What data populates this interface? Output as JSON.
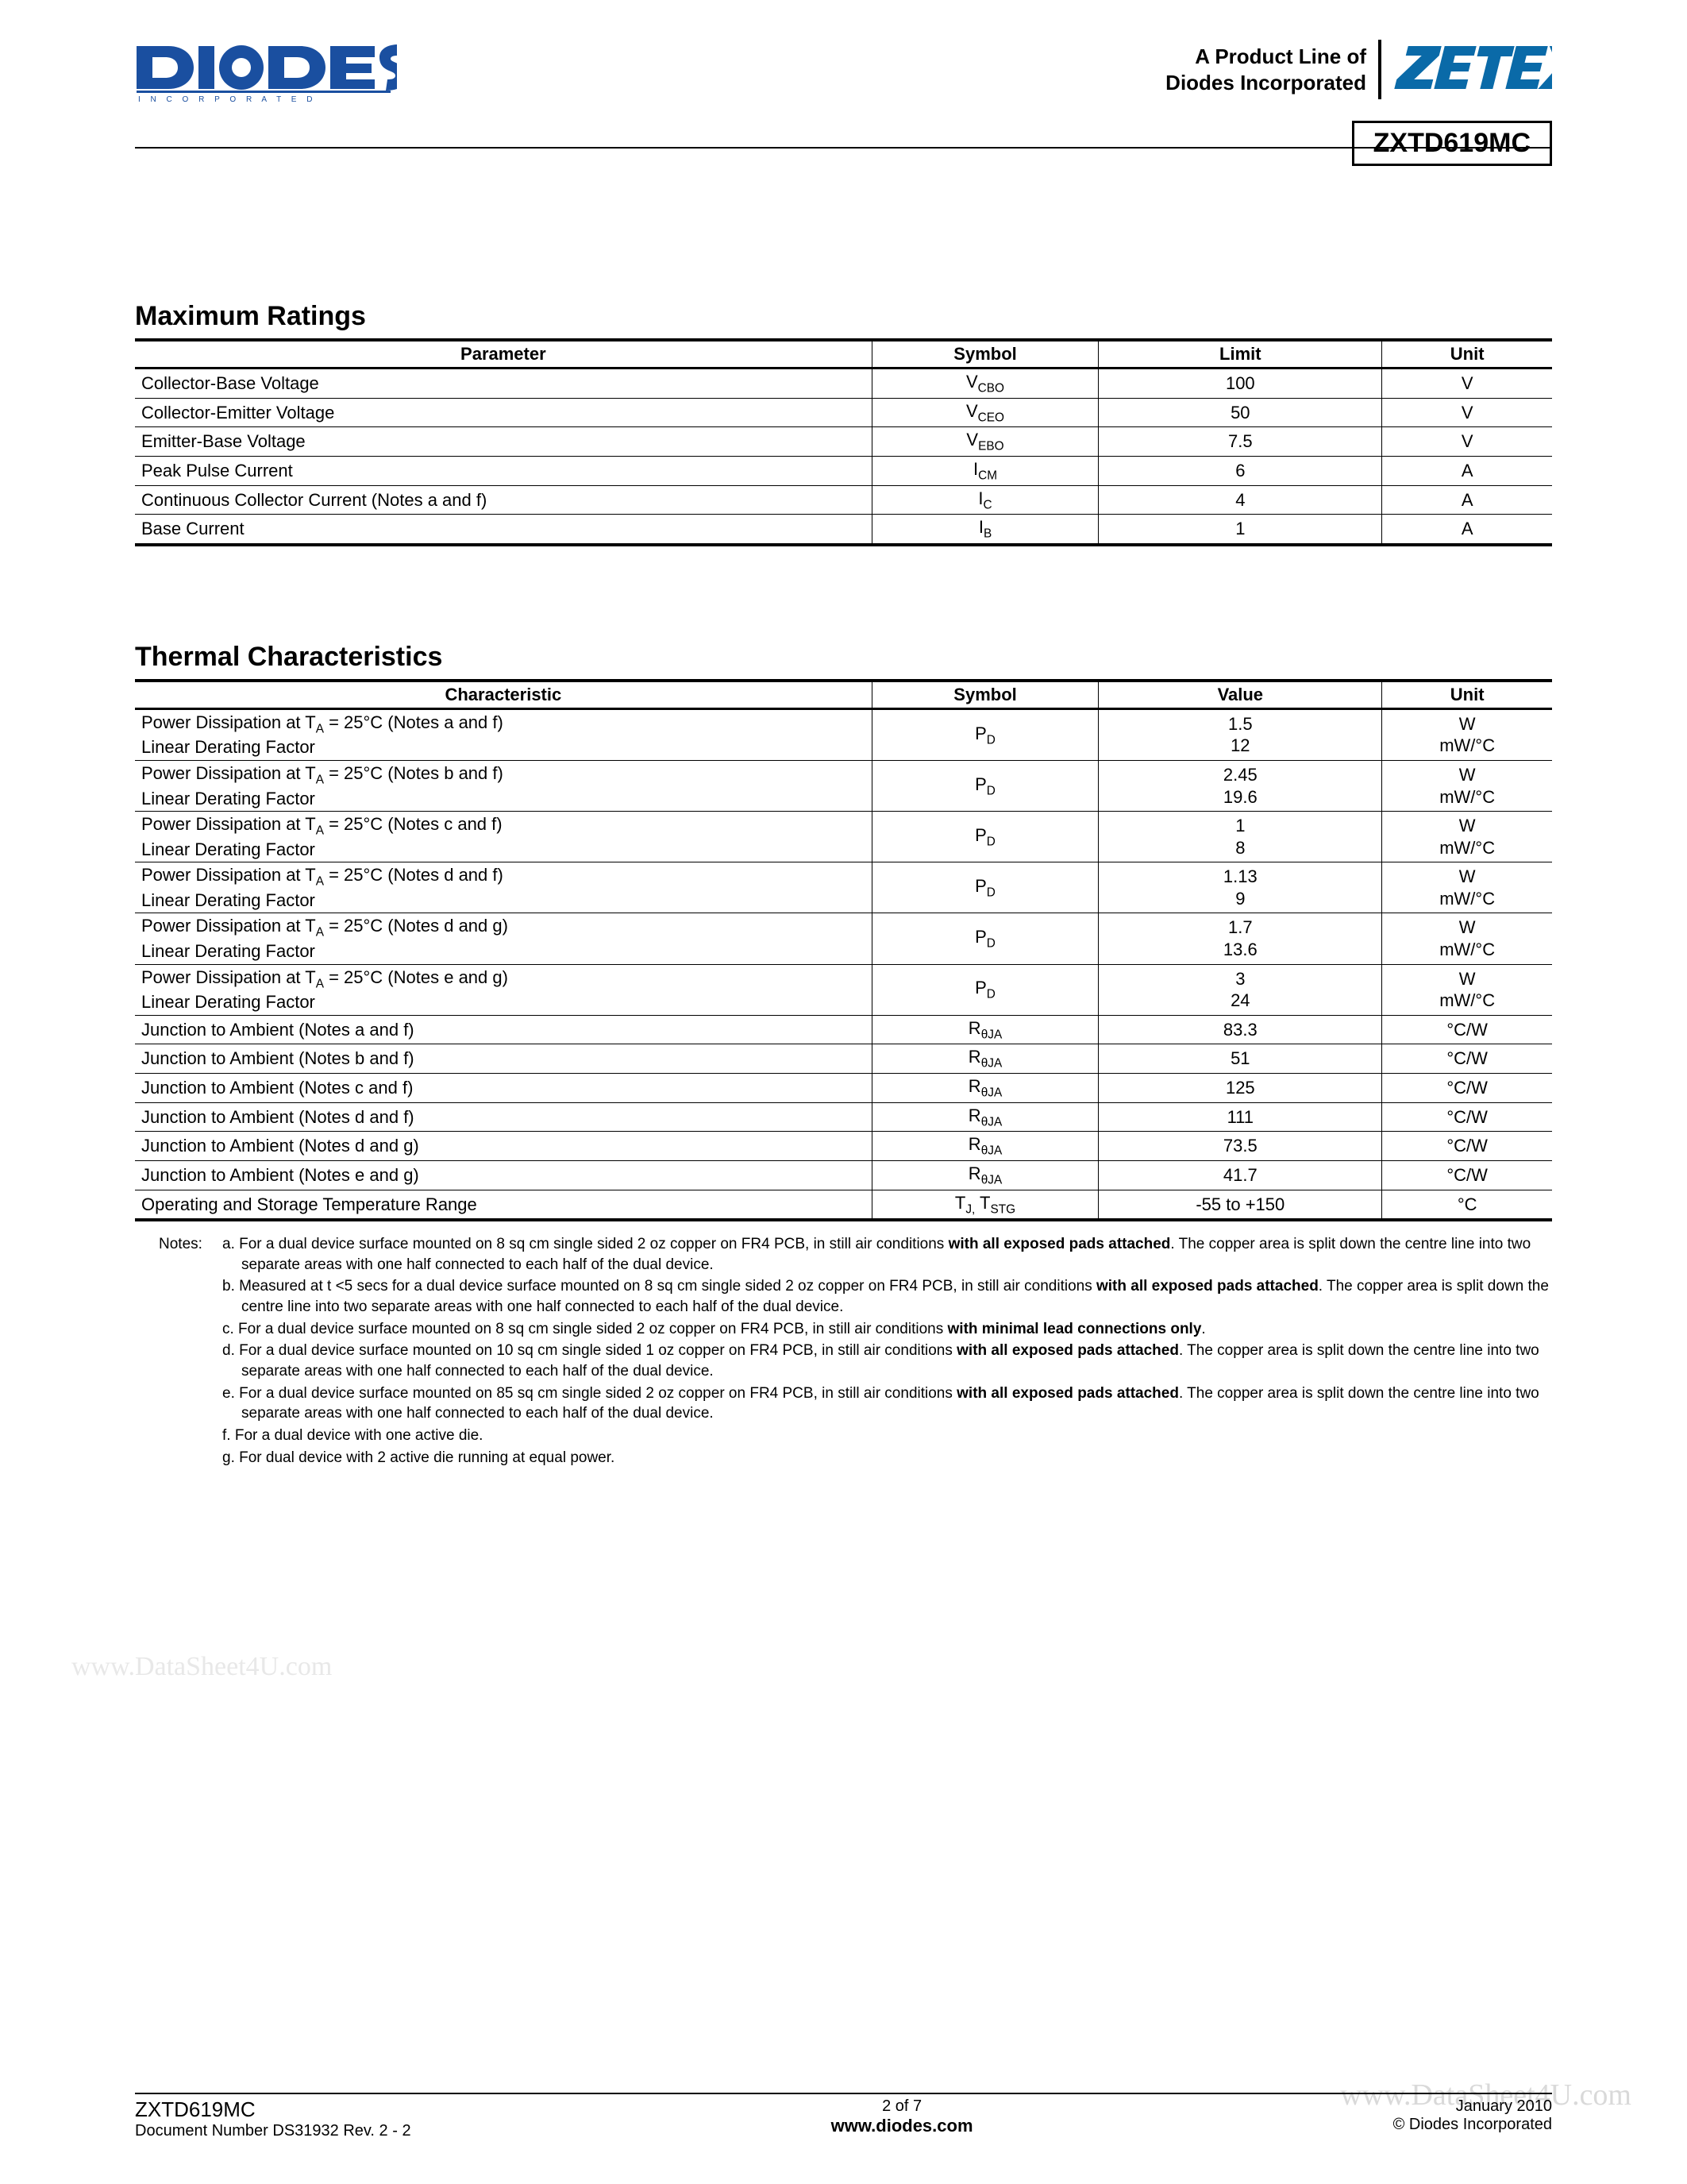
{
  "header": {
    "diodes_brand": "DIODES",
    "diodes_tag": "I N C O R P O R A T E D",
    "product_line_1": "A Product Line of",
    "product_line_2": "Diodes Incorporated",
    "zetex": "ZETEX",
    "part_number": "ZXTD619MC"
  },
  "colors": {
    "diodes_blue": "#1a4fa0",
    "zetex_blue": "#0a6aa8",
    "text": "#000000",
    "watermark": "#e8e8e8"
  },
  "max_ratings": {
    "title": "Maximum Ratings",
    "headers": [
      "Parameter",
      "Symbol",
      "Limit",
      "Unit"
    ],
    "rows": [
      {
        "param": "Collector-Base Voltage",
        "sym": "V",
        "sub": "CBO",
        "limit": "100",
        "unit": "V"
      },
      {
        "param": "Collector-Emitter Voltage",
        "sym": "V",
        "sub": "CEO",
        "limit": "50",
        "unit": "V"
      },
      {
        "param": "Emitter-Base Voltage",
        "sym": "V",
        "sub": "EBO",
        "limit": "7.5",
        "unit": "V"
      },
      {
        "param": "Peak Pulse Current",
        "sym": "I",
        "sub": "CM",
        "limit": "6",
        "unit": "A"
      },
      {
        "param": "Continuous Collector Current (Notes a and f)",
        "sym": "I",
        "sub": "C",
        "limit": "4",
        "unit": "A"
      },
      {
        "param": "Base Current",
        "sym": "I",
        "sub": "B",
        "limit": "1",
        "unit": "A"
      }
    ]
  },
  "thermal": {
    "title": "Thermal Characteristics",
    "headers": [
      "Characteristic",
      "Symbol",
      "Value",
      "Unit"
    ],
    "pd_rows": [
      {
        "note": "(Notes a and f)",
        "v1": "1.5",
        "v2": "12"
      },
      {
        "note": "(Notes b and f)",
        "v1": "2.45",
        "v2": "19.6"
      },
      {
        "note": "(Notes c and f)",
        "v1": "1",
        "v2": "8"
      },
      {
        "note": "(Notes d and f)",
        "v1": "1.13",
        "v2": "9"
      },
      {
        "note": "(Notes d and g)",
        "v1": "1.7",
        "v2": "13.6"
      },
      {
        "note": "(Notes e and g)",
        "v1": "3",
        "v2": "24"
      }
    ],
    "pd_line1_prefix": "Power Dissipation at T",
    "pd_line1_sub": "A",
    "pd_line1_eq": " = 25°C ",
    "pd_line2": "Linear Derating Factor",
    "pd_sym": "P",
    "pd_sym_sub": "D",
    "pd_unit1": "W",
    "pd_unit2": "mW/°C",
    "ja_rows": [
      {
        "note": "(Notes a and f)",
        "val": "83.3"
      },
      {
        "note": "(Notes b and f)",
        "val": "51"
      },
      {
        "note": "(Notes c and f)",
        "val": "125"
      },
      {
        "note": "(Notes d and f)",
        "val": "111"
      },
      {
        "note": "(Notes d and g)",
        "val": "73.5"
      },
      {
        "note": "(Notes e and g)",
        "val": "41.7"
      }
    ],
    "ja_prefix": "Junction to Ambient ",
    "ja_sym": "R",
    "ja_sym_sub": "θJA",
    "ja_unit": "°C/W",
    "temp_row": {
      "param": "Operating and Storage Temperature Range",
      "sym1": "T",
      "sub1": "J,",
      "sym2": " T",
      "sub2": "STG",
      "val": "-55 to +150",
      "unit": "°C"
    }
  },
  "notes": {
    "label": "Notes:",
    "items": [
      "a. For a dual device surface mounted on 8 sq cm single sided 2 oz copper on FR4 PCB, in still air conditions <b>with all exposed pads attached</b>. The copper area is split down the centre line into two separate areas with one half connected to each half of the dual device.",
      "b. Measured at t <5 secs for a dual device surface mounted on 8 sq cm single sided 2 oz copper on FR4 PCB, in still air conditions <b>with all exposed pads attached</b>. The copper area is split down the centre line into two separate areas with one half connected to each half of the dual device.",
      "c. For a dual device surface mounted on 8 sq cm single sided 2 oz copper on FR4 PCB, in still air conditions <b>with minimal lead connections only</b>.",
      "d. For a dual device surface mounted on 10 sq cm single sided 1 oz copper on FR4 PCB, in still air conditions <b>with all exposed pads attached</b>. The copper area is split down the centre line into two separate areas with one half connected to each half of the dual device.",
      "e. For a dual device surface mounted on 85 sq cm single sided 2 oz copper on FR4 PCB, in still air conditions <b>with all exposed pads attached</b>. The copper area is split down the centre line into two separate areas with one half connected to each half of the dual device.",
      "f. For a dual device with one active die.",
      "g. For dual device with 2 active die running at equal power."
    ]
  },
  "watermarks": {
    "wm1": "www.DataSheet4U.com",
    "wm2": "www.DataSheet4U.com"
  },
  "footer": {
    "part": "ZXTD619MC",
    "doc": "Document Number DS31932 Rev. 2 - 2",
    "page": "2 of 7",
    "url": "www.diodes.com",
    "date": "January 2010",
    "copy": "© Diodes Incorporated"
  }
}
